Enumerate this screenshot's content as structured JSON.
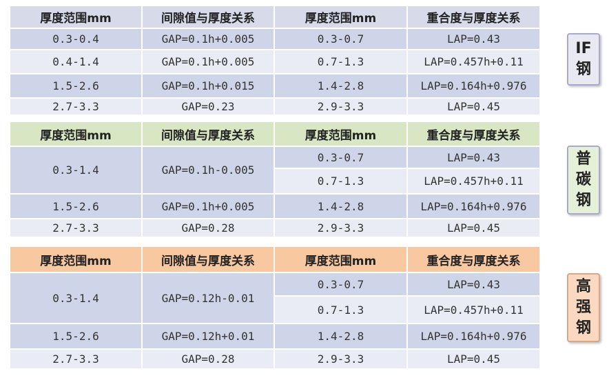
{
  "headers": {
    "col1": "厚度范围mm",
    "col2": "间隙值与厚度关系",
    "col3": "厚度范围mm",
    "col4": "重合度与厚度关系"
  },
  "if_steel": {
    "label": "IF钢",
    "rows": [
      {
        "t1": "0.3-0.4",
        "gap": "GAP=0.1h+0.005",
        "t2": "0.3-0.7",
        "lap": "LAP=0.43"
      },
      {
        "t1": "0.4-1.4",
        "gap": "GAP=0.1h+0.005",
        "t2": "0.7-1.3",
        "lap": "LAP=0.457h+0.11"
      },
      {
        "t1": "1.5-2.6",
        "gap": "GAP=0.1h+0.015",
        "t2": "1.4-2.8",
        "lap": "LAP=0.164h+0.976"
      },
      {
        "t1": "2.7-3.3",
        "gap": "GAP=0.23",
        "t2": "2.9-3.3",
        "lap": "LAP=0.45"
      }
    ]
  },
  "plain_carbon": {
    "label": "普碳钢",
    "rows": [
      {
        "t1": "0.3-1.4",
        "gap": "GAP=0.1h-0.005",
        "t2a": "0.3-0.7",
        "lapa": "LAP=0.43",
        "t2b": "0.7-1.3",
        "lapb": "LAP=0.457h+0.11"
      },
      {
        "t1": "1.5-2.6",
        "gap": "GAP=0.1h+0.005",
        "t2": "1.4-2.8",
        "lap": "LAP=0.164h+0.976"
      },
      {
        "t1": "2.7-3.3",
        "gap": "GAP=0.28",
        "t2": "2.9-3.3",
        "lap": "LAP=0.45"
      }
    ]
  },
  "high_strength": {
    "label": "高强钢",
    "rows": [
      {
        "t1": "0.3-1.4",
        "gap": "GAP=0.12h-0.01",
        "t2a": "0.3-0.7",
        "lapa": "LAP=0.43",
        "t2b": "0.7-1.3",
        "lapb": "LAP=0.457h+0.11"
      },
      {
        "t1": "1.5-2.6",
        "gap": "GAP=0.12h+0.01",
        "t2": "1.4-2.8",
        "lap": "LAP=0.164h+0.976"
      },
      {
        "t1": "2.7-3.3",
        "gap": "GAP=0.28",
        "t2": "2.9-3.3",
        "lap": "LAP=0.45"
      }
    ]
  },
  "colors": {
    "if_header": "#d7dbe9",
    "plain_carbon_header": "#d8e6c4",
    "high_strength_header": "#f8c8a0",
    "row_dark": "#cfd5e8",
    "row_light": "#e9ecf5"
  }
}
